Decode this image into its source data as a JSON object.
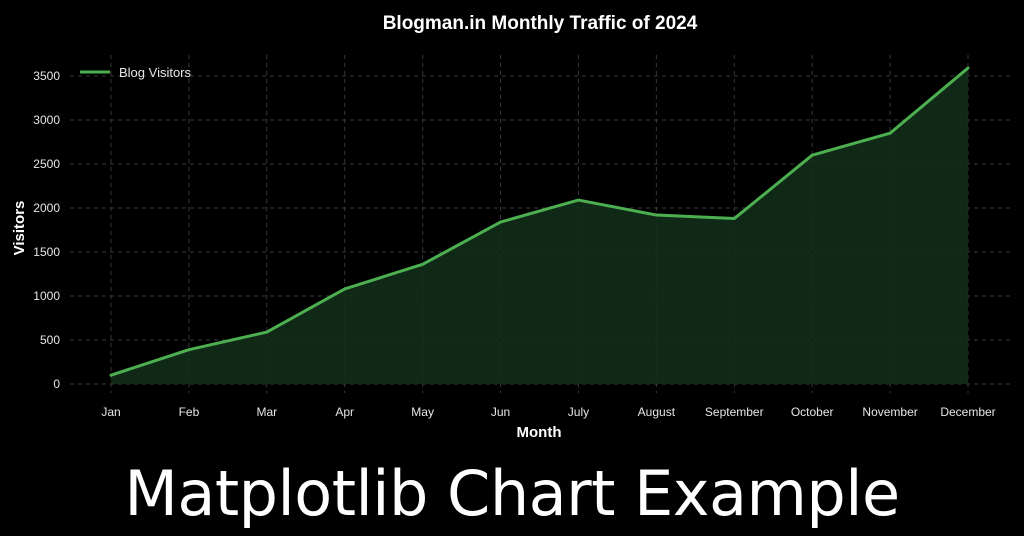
{
  "banner": {
    "text": "Matplotlib Chart Example"
  },
  "colors": {
    "background": "#000000",
    "line": "#4caf50",
    "fill": "#12301a",
    "grid": "#3a3a3a",
    "text": "#e6e6e6"
  },
  "chart_data": {
    "type": "area",
    "title": "Blogman.in Monthly Traffic of 2024",
    "xlabel": "Month",
    "ylabel": "Visitors",
    "categories": [
      "Jan",
      "Feb",
      "Mar",
      "Apr",
      "May",
      "Jun",
      "July",
      "August",
      "September",
      "October",
      "November",
      "December"
    ],
    "series": [
      {
        "name": "Blog Visitors",
        "values": [
          100,
          390,
          590,
          1080,
          1360,
          1840,
          2090,
          1920,
          1880,
          2600,
          2850,
          3590
        ]
      }
    ],
    "ylim": [
      0,
      3700
    ],
    "yticks": [
      0,
      500,
      1000,
      1500,
      2000,
      2500,
      3000,
      3500
    ],
    "grid": true,
    "legend": "top-left"
  }
}
